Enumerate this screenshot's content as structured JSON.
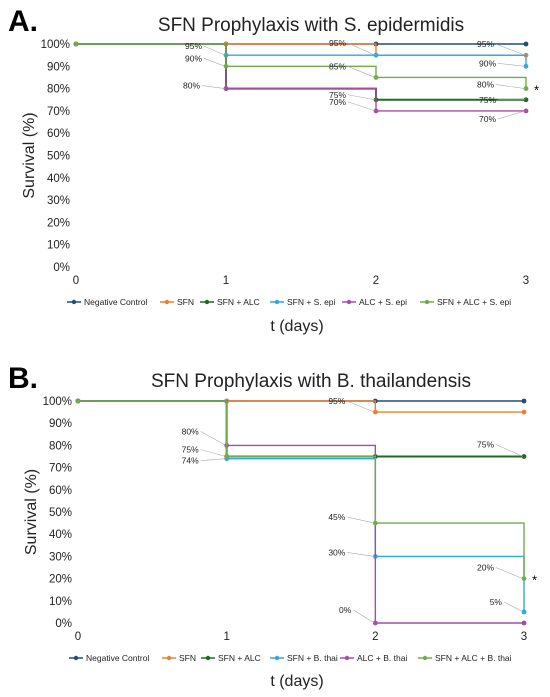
{
  "chart_data": [
    {
      "type": "line",
      "step": true,
      "panel_label": "A.",
      "title": "SFN Prophylaxis with S. epidermidis",
      "xlabel": "t (days)",
      "ylabel": "Survival (%)",
      "x": [
        0,
        1,
        2,
        3
      ],
      "x_ticks": [
        "0",
        "1",
        "2",
        "3"
      ],
      "y_ticks": [
        "0%",
        "10%",
        "20%",
        "30%",
        "40%",
        "50%",
        "60%",
        "70%",
        "80%",
        "90%",
        "100%"
      ],
      "ylim": [
        0,
        100
      ],
      "legend_position": "bottom",
      "series": [
        {
          "name": "Negative Control",
          "color": "#1f4e79",
          "values": [
            100,
            100,
            100,
            100
          ]
        },
        {
          "name": "SFN",
          "color": "#ed7d31",
          "values": [
            100,
            100,
            95,
            95
          ]
        },
        {
          "name": "SFN + ALC",
          "color": "#1e6b23",
          "values": [
            100,
            80,
            75,
            75
          ]
        },
        {
          "name": "SFN + S. epi",
          "color": "#2ea8e0",
          "values": [
            100,
            95,
            95,
            90
          ]
        },
        {
          "name": "ALC + S. epi",
          "color": "#a64ca6",
          "values": [
            100,
            80,
            70,
            70
          ]
        },
        {
          "name": "SFN + ALC + S. epi",
          "color": "#70ad47",
          "values": [
            100,
            90,
            85,
            80
          ]
        }
      ],
      "data_labels": [
        {
          "text": "95%",
          "x": 1,
          "y": 95
        },
        {
          "text": "90%",
          "x": 1,
          "y": 90
        },
        {
          "text": "80%",
          "x": 1,
          "y": 80
        },
        {
          "text": "95%",
          "x": 2,
          "y": 95
        },
        {
          "text": "85%",
          "x": 2,
          "y": 85
        },
        {
          "text": "75%",
          "x": 2,
          "y": 75
        },
        {
          "text": "70%",
          "x": 2,
          "y": 70
        },
        {
          "text": "95%",
          "x": 3,
          "y": 95
        },
        {
          "text": "90%",
          "x": 3,
          "y": 90
        },
        {
          "text": "80%",
          "x": 3,
          "y": 80
        },
        {
          "text": "75%",
          "x": 3,
          "y": 75
        },
        {
          "text": "70%",
          "x": 3,
          "y": 70
        }
      ],
      "annotation": {
        "text": "*",
        "x": 3,
        "y": 80
      }
    },
    {
      "type": "line",
      "step": true,
      "panel_label": "B.",
      "title": "SFN Prophylaxis with B. thailandensis",
      "xlabel": "t (days)",
      "ylabel": "Survival (%)",
      "x": [
        0,
        1,
        2,
        3
      ],
      "x_ticks": [
        "0",
        "1",
        "2",
        "3"
      ],
      "y_ticks": [
        "0%",
        "10%",
        "20%",
        "30%",
        "40%",
        "50%",
        "60%",
        "70%",
        "80%",
        "90%",
        "100%"
      ],
      "ylim": [
        0,
        100
      ],
      "legend_position": "bottom",
      "series": [
        {
          "name": "Negative Control",
          "color": "#1f4e79",
          "values": [
            100,
            100,
            100,
            100
          ]
        },
        {
          "name": "SFN",
          "color": "#ed7d31",
          "values": [
            100,
            100,
            95,
            95
          ]
        },
        {
          "name": "SFN + ALC",
          "color": "#1e6b23",
          "values": [
            100,
            75,
            75,
            75
          ]
        },
        {
          "name": "SFN + B. thai",
          "color": "#2ea8e0",
          "values": [
            100,
            74,
            30,
            5
          ]
        },
        {
          "name": "ALC + B. thai",
          "color": "#a64ca6",
          "values": [
            100,
            80,
            0,
            0
          ]
        },
        {
          "name": "SFN + ALC + B. thai",
          "color": "#70ad47",
          "values": [
            100,
            75,
            45,
            20
          ]
        }
      ],
      "data_labels": [
        {
          "text": "80%",
          "x": 1,
          "y": 80
        },
        {
          "text": "75%",
          "x": 1,
          "y": 75
        },
        {
          "text": "74%",
          "x": 1,
          "y": 74
        },
        {
          "text": "95%",
          "x": 2,
          "y": 95
        },
        {
          "text": "45%",
          "x": 2,
          "y": 45
        },
        {
          "text": "30%",
          "x": 2,
          "y": 30
        },
        {
          "text": "0%",
          "x": 2,
          "y": 0
        },
        {
          "text": "75%",
          "x": 3,
          "y": 75
        },
        {
          "text": "20%",
          "x": 3,
          "y": 20
        },
        {
          "text": "5%",
          "x": 3,
          "y": 5
        }
      ],
      "annotation": {
        "text": "*",
        "x": 3,
        "y": 20
      }
    }
  ]
}
